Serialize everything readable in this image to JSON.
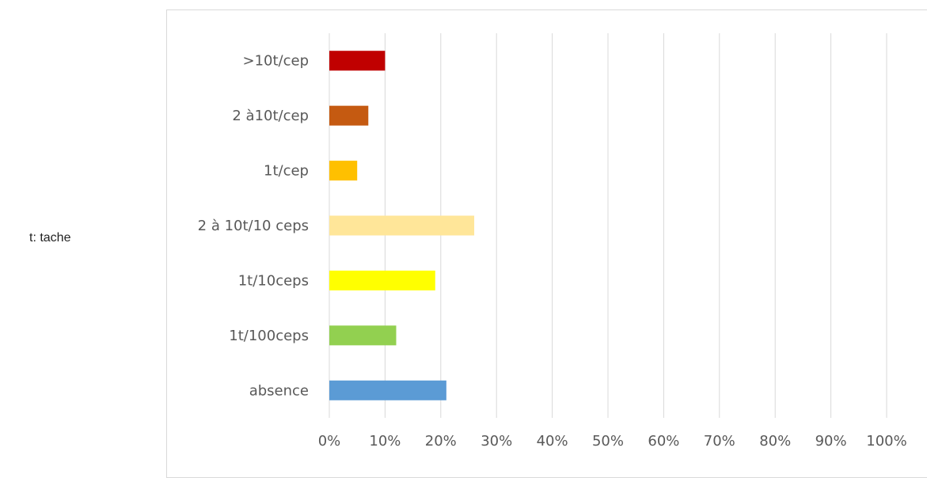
{
  "note": "t: tache",
  "chart_data": {
    "type": "bar",
    "orientation": "horizontal",
    "categories": [
      "absence",
      "1t/100ceps",
      "1t/10ceps",
      "2 à 10t/10 ceps",
      "1t/cep",
      "2 à10t/cep",
      ">10t/cep"
    ],
    "values": [
      21,
      12,
      19,
      26,
      5,
      7,
      10
    ],
    "colors": [
      "#5b9bd5",
      "#92d050",
      "#ffff00",
      "#ffe699",
      "#ffc000",
      "#c55a11",
      "#c00000"
    ],
    "xlim": [
      0,
      100
    ],
    "xticks": [
      "0%",
      "10%",
      "20%",
      "30%",
      "40%",
      "50%",
      "60%",
      "70%",
      "80%",
      "90%",
      "100%"
    ],
    "grid": true
  }
}
